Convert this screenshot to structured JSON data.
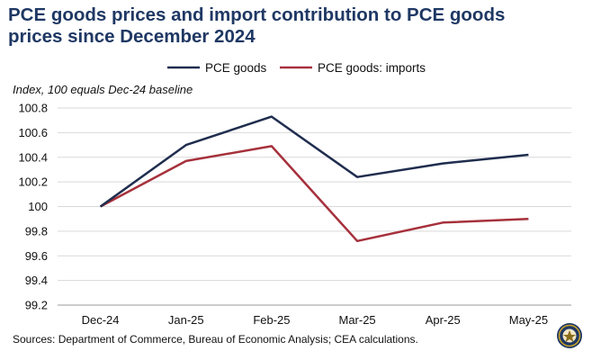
{
  "header": {
    "title_line1": "PCE goods prices and import contribution to PCE goods",
    "title_line2": "prices since December 2024",
    "index_note": "Index, 100 equals Dec-24 baseline"
  },
  "footer": {
    "sources": "Sources: Department of Commerce, Bureau of Economic Analysis; CEA calculations."
  },
  "colors": {
    "title": "#1f3864",
    "series_goods": "#1f2d4e",
    "series_imports": "#a6313c",
    "grid": "#d9d9d9"
  },
  "chart_data": {
    "type": "line",
    "title": "PCE goods prices and import contribution to PCE goods prices since December 2024",
    "ylabel": "Index, 100 equals Dec-24 baseline",
    "xlabel": "",
    "categories": [
      "Dec-24",
      "Jan-25",
      "Feb-25",
      "Mar-25",
      "Apr-25",
      "May-25"
    ],
    "ylim": [
      99.2,
      100.8
    ],
    "yticks": [
      "99.2",
      "99.4",
      "99.6",
      "99.8",
      "100",
      "100.2",
      "100.4",
      "100.6",
      "100.8"
    ],
    "ytick_values": [
      99.2,
      99.4,
      99.6,
      99.8,
      100.0,
      100.2,
      100.4,
      100.6,
      100.8
    ],
    "grid": true,
    "legend_position": "top-center",
    "series": [
      {
        "name": "PCE goods",
        "values": [
          100.0,
          100.5,
          100.73,
          100.24,
          100.35,
          100.42
        ]
      },
      {
        "name": "PCE goods: imports",
        "values": [
          100.0,
          100.37,
          100.49,
          99.72,
          99.87,
          99.9
        ]
      }
    ]
  }
}
